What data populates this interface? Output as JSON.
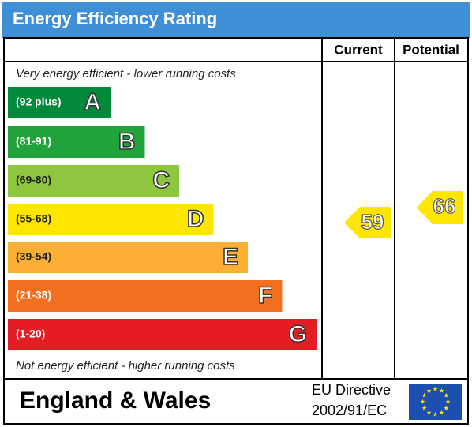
{
  "header": {
    "title": "Energy Efficiency Rating"
  },
  "columns": [
    "Current",
    "Potential"
  ],
  "top_note": "Very energy efficient - lower running costs",
  "bottom_note": "Not energy efficient - higher running costs",
  "ratings": [
    {
      "range": "(92 plus)",
      "letter": "A",
      "color": "#008a3a"
    },
    {
      "range": "(81-91)",
      "letter": "B",
      "color": "#1fa33a"
    },
    {
      "range": "(69-80)",
      "letter": "C",
      "color": "#8dc63f"
    },
    {
      "range": "(55-68)",
      "letter": "D",
      "color": "#ffe600"
    },
    {
      "range": "(39-54)",
      "letter": "E",
      "color": "#fbb034"
    },
    {
      "range": "(21-38)",
      "letter": "F",
      "color": "#f37021"
    },
    {
      "range": "(1-20)",
      "letter": "G",
      "color": "#e31d23"
    }
  ],
  "current": 59,
  "potential": 66,
  "footer": {
    "region": "England & Wales",
    "directive_line1": "EU Directive",
    "directive_line2": "2002/91/EC"
  }
}
